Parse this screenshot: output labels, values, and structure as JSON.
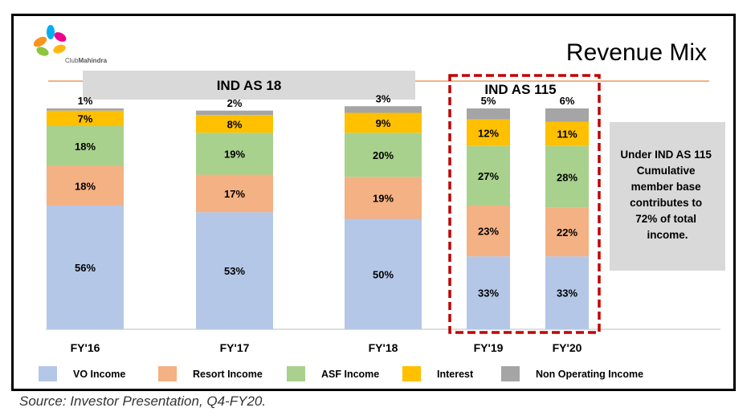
{
  "logo": {
    "brand_prefix": "Club",
    "brand_name": "Mahindra"
  },
  "title": "Revenue Mix",
  "groups": [
    {
      "label": "IND AS 18"
    },
    {
      "label": "IND AS 115"
    }
  ],
  "note": [
    "Under IND AS 115",
    "Cumulative",
    "member base",
    "contributes to",
    "72% of total",
    "income."
  ],
  "source": "Source: Investor Presentation, Q4-FY20.",
  "colors": {
    "vo": "#b4c7e7",
    "resort": "#f4b183",
    "asf": "#a9d18e",
    "interest": "#ffc000",
    "nonop": "#a5a5a5",
    "accent_line": "#f4b183",
    "highlight_box": "#c00000",
    "group_band": "#d9d9d9",
    "note_box": "#d9d9d9"
  },
  "chart_data": {
    "type": "bar",
    "stacked": true,
    "normalized": true,
    "title": "Revenue Mix",
    "categories": [
      "FY'16",
      "FY'17",
      "FY'18",
      "FY'19",
      "FY'20"
    ],
    "series": [
      {
        "name": "VO Income",
        "key": "vo",
        "values": [
          56,
          53,
          50,
          33,
          33
        ]
      },
      {
        "name": "Resort Income",
        "key": "resort",
        "values": [
          18,
          17,
          19,
          23,
          22
        ]
      },
      {
        "name": "ASF Income",
        "key": "asf",
        "values": [
          18,
          19,
          20,
          27,
          28
        ]
      },
      {
        "name": "Interest",
        "key": "interest",
        "values": [
          7,
          8,
          9,
          12,
          11
        ]
      },
      {
        "name": "Non Operating Income",
        "key": "nonop",
        "values": [
          1,
          2,
          3,
          5,
          6
        ]
      }
    ],
    "ylim": [
      0,
      100
    ],
    "highlighted_categories": [
      "FY'19",
      "FY'20"
    ],
    "legend_position": "bottom"
  }
}
